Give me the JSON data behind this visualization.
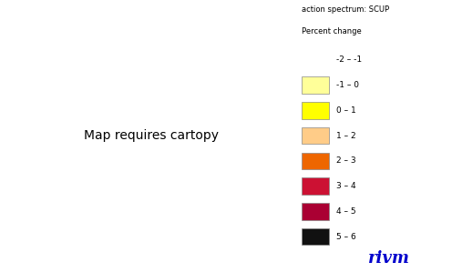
{
  "legend_title_line1": "action spectrum: SCUP",
  "legend_title_line2": "Percent change",
  "legend_entries": [
    {
      "label": "-2 – -1",
      "color": null
    },
    {
      "label": "-1 – 0",
      "color": "#FFFF99"
    },
    {
      "label": "0 – 1",
      "color": "#FFFF00"
    },
    {
      "label": "1 – 2",
      "color": "#FFCC88"
    },
    {
      "label": "2 – 3",
      "color": "#EE6600"
    },
    {
      "label": "3 – 4",
      "color": "#CC1133"
    },
    {
      "label": "4 – 5",
      "color": "#AA0033"
    },
    {
      "label": "5 – 6",
      "color": "#111111"
    }
  ],
  "rivm_color": "#0000CC",
  "background_color": "#ffffff",
  "country_colors": {
    "Iceland": "#FFFF00",
    "Norway": "#FFFF00",
    "Sweden": "#FFFF00",
    "Finland": "#FFFF99",
    "Estonia": "#EE6600",
    "Latvia": "#AA0033",
    "Lithuania": "#AA0033",
    "Belarus": "#AA0033",
    "Denmark": "#EE6600",
    "United Kingdom": "#CC1133",
    "Ireland": "#CC1133",
    "Netherlands": "#111111",
    "Belgium": "#111111",
    "Luxembourg": "#111111",
    "Germany": "#111111",
    "Poland": "#111111",
    "Czechia": "#111111",
    "Czech Rep.": "#111111",
    "Slovakia": "#111111",
    "Austria": "#111111",
    "Switzerland": "#111111",
    "France": "#AA0033",
    "Spain": "#AA0033",
    "Portugal": "#CC1133",
    "Italy": "#CC1133",
    "Slovenia": "#111111",
    "Croatia": "#AA0033",
    "Hungary": "#AA0033",
    "Romania": "#AA0033",
    "Serbia": "#AA0033",
    "Bulgaria": "#AA0033",
    "Bosnia and Herz.": "#AA0033",
    "Montenegro": "#AA0033",
    "North Macedonia": "#AA0033",
    "Albania": "#AA0033",
    "Kosovo": "#AA0033",
    "Greece": "#CC1133",
    "Ukraine": "#AA0033",
    "Moldova": "#AA0033",
    "Russia": "#CC1133",
    "Turkey": "#EE6600",
    "Cyprus": "#EE6600",
    "Morocco": "#EE6600",
    "Algeria": "#EE6600",
    "Tunisia": "#FFCC88",
    "Libya": "#FFCC88",
    "Egypt": "#FFCC88",
    "Israel": "#FFCC88",
    "Lebanon": "#FFCC88",
    "Syria": "#EE6600",
    "Jordan": "#FFCC88",
    "Iraq": "#FFCC88",
    "Iran": "#EE6600",
    "Saudi Arabia": "#FFCC88",
    "Kuwait": "#FFCC88",
    "Azerbaijan": "#EE6600",
    "Georgia": "#EE6600",
    "Armenia": "#EE6600",
    "Kazakhstan": "#EE6600",
    "Uzbekistan": "#EE6600",
    "Turkmenistan": "#EE6600",
    "Mauritania": "#FFCC88",
    "Mali": "#FFCC88",
    "Niger": "#FFCC88",
    "Chad": "#FFCC88",
    "Sudan": "#FFCC88",
    "Western Sahara": "#FFCC88"
  },
  "extent": [
    -30,
    65,
    20,
    75
  ]
}
